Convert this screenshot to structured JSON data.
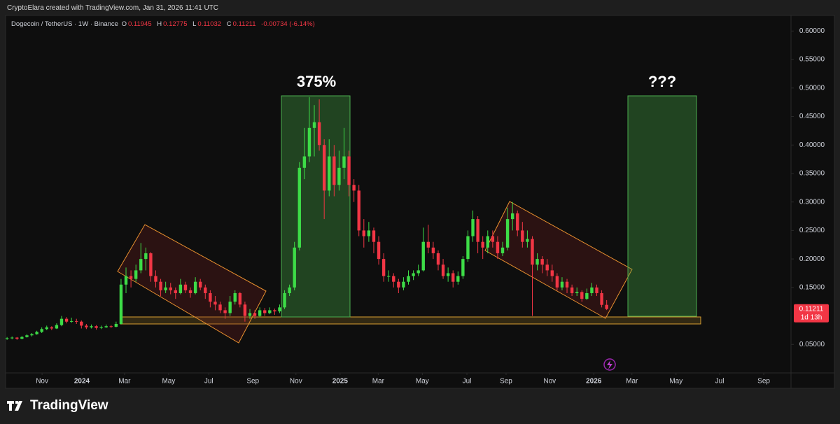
{
  "page": {
    "credit": "CryptoElara created with TradingView.com, Jan 31, 2026 11:41 UTC",
    "logo": "TradingView"
  },
  "chart_data": {
    "type": "candlestick",
    "title": "Dogecoin / TetherUS · 1W · Binance",
    "legend_labels": [
      "O",
      "H",
      "L",
      "C"
    ],
    "change": "-0.00734 (-6.14%)",
    "countdown": "1d 13h",
    "annotations": [
      "375%",
      "???"
    ],
    "up_color": "#3ddc47",
    "down_color": "#f23645",
    "grid": false,
    "xlim": [
      -0.3,
      158.2
    ],
    "xticks": [
      {
        "value": 7.06,
        "label": "Nov"
      },
      {
        "value": 15.1,
        "label": "2024"
      },
      {
        "value": 23.7,
        "label": "Mar"
      },
      {
        "value": 32.6,
        "label": "May"
      },
      {
        "value": 40.7,
        "label": "Jul"
      },
      {
        "value": 49.6,
        "label": "Sep"
      },
      {
        "value": 58.3,
        "label": "Nov"
      },
      {
        "value": 67.2,
        "label": "2025"
      },
      {
        "value": 74.9,
        "label": "Mar"
      },
      {
        "value": 83.8,
        "label": "May"
      },
      {
        "value": 92.8,
        "label": "Jul"
      },
      {
        "value": 100.7,
        "label": "Sep"
      },
      {
        "value": 109.5,
        "label": "Nov"
      },
      {
        "value": 118.4,
        "label": "2026"
      },
      {
        "value": 126.1,
        "label": "Mar"
      },
      {
        "value": 135.0,
        "label": "May"
      },
      {
        "value": 143.8,
        "label": "Jul"
      },
      {
        "value": 152.7,
        "label": "Sep"
      }
    ],
    "ylim": [
      0,
      0.625
    ],
    "yticks": [
      {
        "value": 0.05,
        "label": "0.05000"
      },
      {
        "value": 0.15,
        "label": "0.15000"
      },
      {
        "value": 0.2,
        "label": "0.20000"
      },
      {
        "value": 0.25,
        "label": "0.25000"
      },
      {
        "value": 0.3,
        "label": "0.30000"
      },
      {
        "value": 0.35,
        "label": "0.35000"
      },
      {
        "value": 0.4,
        "label": "0.40000"
      },
      {
        "value": 0.45,
        "label": "0.45000"
      },
      {
        "value": 0.5,
        "label": "0.50000"
      },
      {
        "value": 0.55,
        "label": "0.55000"
      },
      {
        "value": 0.6,
        "label": "0.60000"
      }
    ],
    "ohlc": [
      [
        0.06,
        0.063,
        0.058,
        0.061
      ],
      [
        0.061,
        0.064,
        0.059,
        0.062
      ],
      [
        0.062,
        0.063,
        0.058,
        0.06
      ],
      [
        0.06,
        0.065,
        0.059,
        0.063
      ],
      [
        0.063,
        0.068,
        0.062,
        0.066
      ],
      [
        0.066,
        0.07,
        0.064,
        0.068
      ],
      [
        0.068,
        0.074,
        0.067,
        0.072
      ],
      [
        0.072,
        0.08,
        0.07,
        0.077
      ],
      [
        0.077,
        0.083,
        0.075,
        0.08
      ],
      [
        0.08,
        0.082,
        0.075,
        0.078
      ],
      [
        0.078,
        0.087,
        0.077,
        0.084
      ],
      [
        0.084,
        0.1,
        0.082,
        0.095
      ],
      [
        0.095,
        0.098,
        0.087,
        0.09
      ],
      [
        0.09,
        0.097,
        0.088,
        0.091
      ],
      [
        0.091,
        0.095,
        0.086,
        0.09
      ],
      [
        0.09,
        0.092,
        0.078,
        0.083
      ],
      [
        0.083,
        0.086,
        0.077,
        0.08
      ],
      [
        0.08,
        0.085,
        0.078,
        0.082
      ],
      [
        0.082,
        0.084,
        0.076,
        0.079
      ],
      [
        0.079,
        0.083,
        0.077,
        0.08
      ],
      [
        0.08,
        0.085,
        0.079,
        0.082
      ],
      [
        0.082,
        0.084,
        0.079,
        0.081
      ],
      [
        0.081,
        0.09,
        0.08,
        0.086
      ],
      [
        0.086,
        0.165,
        0.085,
        0.155
      ],
      [
        0.155,
        0.185,
        0.14,
        0.17
      ],
      [
        0.17,
        0.18,
        0.15,
        0.165
      ],
      [
        0.165,
        0.19,
        0.16,
        0.18
      ],
      [
        0.18,
        0.228,
        0.175,
        0.2
      ],
      [
        0.2,
        0.22,
        0.18,
        0.21
      ],
      [
        0.21,
        0.212,
        0.16,
        0.17
      ],
      [
        0.17,
        0.18,
        0.15,
        0.16
      ],
      [
        0.16,
        0.165,
        0.135,
        0.145
      ],
      [
        0.145,
        0.16,
        0.14,
        0.15
      ],
      [
        0.15,
        0.158,
        0.138,
        0.145
      ],
      [
        0.145,
        0.15,
        0.13,
        0.14
      ],
      [
        0.14,
        0.165,
        0.138,
        0.155
      ],
      [
        0.155,
        0.16,
        0.14,
        0.145
      ],
      [
        0.145,
        0.15,
        0.132,
        0.14
      ],
      [
        0.14,
        0.168,
        0.138,
        0.16
      ],
      [
        0.16,
        0.165,
        0.145,
        0.15
      ],
      [
        0.15,
        0.155,
        0.13,
        0.14
      ],
      [
        0.14,
        0.145,
        0.115,
        0.125
      ],
      [
        0.125,
        0.135,
        0.11,
        0.12
      ],
      [
        0.12,
        0.125,
        0.105,
        0.11
      ],
      [
        0.11,
        0.115,
        0.095,
        0.105
      ],
      [
        0.105,
        0.135,
        0.1,
        0.125
      ],
      [
        0.125,
        0.145,
        0.12,
        0.14
      ],
      [
        0.14,
        0.142,
        0.115,
        0.12
      ],
      [
        0.12,
        0.125,
        0.09,
        0.1
      ],
      [
        0.1,
        0.112,
        0.095,
        0.105
      ],
      [
        0.105,
        0.11,
        0.095,
        0.1
      ],
      [
        0.1,
        0.115,
        0.098,
        0.11
      ],
      [
        0.11,
        0.114,
        0.1,
        0.105
      ],
      [
        0.105,
        0.115,
        0.103,
        0.11
      ],
      [
        0.11,
        0.113,
        0.102,
        0.108
      ],
      [
        0.108,
        0.12,
        0.105,
        0.115
      ],
      [
        0.115,
        0.145,
        0.112,
        0.14
      ],
      [
        0.14,
        0.155,
        0.135,
        0.15
      ],
      [
        0.15,
        0.23,
        0.145,
        0.22
      ],
      [
        0.22,
        0.37,
        0.215,
        0.36
      ],
      [
        0.36,
        0.43,
        0.34,
        0.38
      ],
      [
        0.38,
        0.484,
        0.37,
        0.43
      ],
      [
        0.43,
        0.47,
        0.38,
        0.44
      ],
      [
        0.44,
        0.48,
        0.39,
        0.4
      ],
      [
        0.4,
        0.41,
        0.27,
        0.32
      ],
      [
        0.32,
        0.41,
        0.31,
        0.38
      ],
      [
        0.38,
        0.4,
        0.31,
        0.33
      ],
      [
        0.33,
        0.39,
        0.32,
        0.36
      ],
      [
        0.36,
        0.43,
        0.34,
        0.38
      ],
      [
        0.38,
        0.39,
        0.31,
        0.33
      ],
      [
        0.33,
        0.34,
        0.3,
        0.32
      ],
      [
        0.32,
        0.33,
        0.24,
        0.25
      ],
      [
        0.25,
        0.27,
        0.22,
        0.24
      ],
      [
        0.24,
        0.265,
        0.23,
        0.25
      ],
      [
        0.25,
        0.255,
        0.21,
        0.23
      ],
      [
        0.23,
        0.24,
        0.19,
        0.2
      ],
      [
        0.2,
        0.21,
        0.16,
        0.17
      ],
      [
        0.17,
        0.18,
        0.16,
        0.17
      ],
      [
        0.17,
        0.175,
        0.15,
        0.16
      ],
      [
        0.16,
        0.165,
        0.14,
        0.15
      ],
      [
        0.15,
        0.168,
        0.145,
        0.16
      ],
      [
        0.16,
        0.18,
        0.155,
        0.17
      ],
      [
        0.17,
        0.18,
        0.163,
        0.175
      ],
      [
        0.175,
        0.19,
        0.17,
        0.18
      ],
      [
        0.18,
        0.255,
        0.178,
        0.23
      ],
      [
        0.23,
        0.26,
        0.21,
        0.22
      ],
      [
        0.22,
        0.23,
        0.2,
        0.21
      ],
      [
        0.21,
        0.215,
        0.18,
        0.19
      ],
      [
        0.19,
        0.2,
        0.165,
        0.17
      ],
      [
        0.17,
        0.185,
        0.16,
        0.175
      ],
      [
        0.175,
        0.18,
        0.15,
        0.16
      ],
      [
        0.16,
        0.178,
        0.155,
        0.17
      ],
      [
        0.17,
        0.205,
        0.165,
        0.2
      ],
      [
        0.2,
        0.25,
        0.195,
        0.24
      ],
      [
        0.24,
        0.285,
        0.23,
        0.27
      ],
      [
        0.27,
        0.275,
        0.21,
        0.23
      ],
      [
        0.23,
        0.24,
        0.2,
        0.22
      ],
      [
        0.22,
        0.25,
        0.21,
        0.24
      ],
      [
        0.24,
        0.25,
        0.22,
        0.23
      ],
      [
        0.23,
        0.24,
        0.2,
        0.21
      ],
      [
        0.21,
        0.23,
        0.205,
        0.22
      ],
      [
        0.22,
        0.29,
        0.215,
        0.27
      ],
      [
        0.27,
        0.3,
        0.25,
        0.28
      ],
      [
        0.28,
        0.285,
        0.24,
        0.25
      ],
      [
        0.25,
        0.265,
        0.22,
        0.23
      ],
      [
        0.23,
        0.25,
        0.22,
        0.235
      ],
      [
        0.235,
        0.24,
        0.1,
        0.19
      ],
      [
        0.19,
        0.21,
        0.18,
        0.2
      ],
      [
        0.2,
        0.205,
        0.175,
        0.19
      ],
      [
        0.19,
        0.2,
        0.17,
        0.18
      ],
      [
        0.18,
        0.19,
        0.16,
        0.17
      ],
      [
        0.17,
        0.175,
        0.145,
        0.15
      ],
      [
        0.15,
        0.168,
        0.145,
        0.16
      ],
      [
        0.16,
        0.165,
        0.14,
        0.15
      ],
      [
        0.15,
        0.155,
        0.135,
        0.14
      ],
      [
        0.14,
        0.15,
        0.135,
        0.142
      ],
      [
        0.142,
        0.145,
        0.125,
        0.13
      ],
      [
        0.13,
        0.148,
        0.128,
        0.14
      ],
      [
        0.14,
        0.158,
        0.135,
        0.15
      ],
      [
        0.15,
        0.155,
        0.135,
        0.14
      ],
      [
        0.14,
        0.145,
        0.115,
        0.11945
      ],
      [
        0.11945,
        0.12775,
        0.11032,
        0.11211
      ]
    ]
  }
}
